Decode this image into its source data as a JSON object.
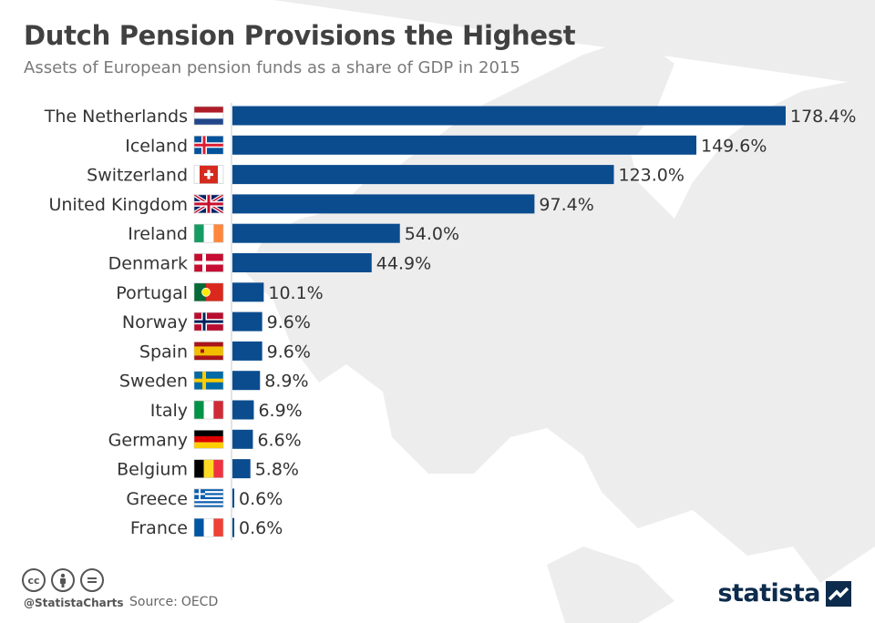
{
  "header": {
    "title": "Dutch Pension Provisions the Highest",
    "subtitle": "Assets of European pension funds as a share of GDP in 2015"
  },
  "footer": {
    "handle": "@StatistaCharts",
    "source_label": "Source:",
    "source": "OECD",
    "logo_text": "statista",
    "license_icons": [
      "cc-icon",
      "by-icon",
      "nd-icon"
    ]
  },
  "colors": {
    "bar": "#0b4c8f",
    "label": "#333333",
    "map": "#ececec"
  },
  "chart_data": {
    "type": "bar",
    "orientation": "horizontal",
    "title": "Dutch Pension Provisions the Highest",
    "subtitle": "Assets of European pension funds as a share of GDP in 2015",
    "xlim": [
      0,
      178.4
    ],
    "grid": false,
    "unit": "%",
    "categories": [
      "The Netherlands",
      "Iceland",
      "Switzerland",
      "United Kingdom",
      "Ireland",
      "Denmark",
      "Portugal",
      "Norway",
      "Spain",
      "Sweden",
      "Italy",
      "Germany",
      "Belgium",
      "Greece",
      "France"
    ],
    "values": [
      178.4,
      149.6,
      123.0,
      97.4,
      54.0,
      44.9,
      10.1,
      9.6,
      9.6,
      8.9,
      6.9,
      6.6,
      5.8,
      0.6,
      0.6
    ],
    "labels": [
      "178.4%",
      "149.6%",
      "123.0%",
      "97.4%",
      "54.0%",
      "44.9%",
      "10.1%",
      "9.6%",
      "9.6%",
      "8.9%",
      "6.9%",
      "6.6%",
      "5.8%",
      "0.6%",
      "0.6%"
    ],
    "flags": [
      "netherlands-flag-icon",
      "iceland-flag-icon",
      "switzerland-flag-icon",
      "united-kingdom-flag-icon",
      "ireland-flag-icon",
      "denmark-flag-icon",
      "portugal-flag-icon",
      "norway-flag-icon",
      "spain-flag-icon",
      "sweden-flag-icon",
      "italy-flag-icon",
      "germany-flag-icon",
      "belgium-flag-icon",
      "greece-flag-icon",
      "france-flag-icon"
    ]
  }
}
